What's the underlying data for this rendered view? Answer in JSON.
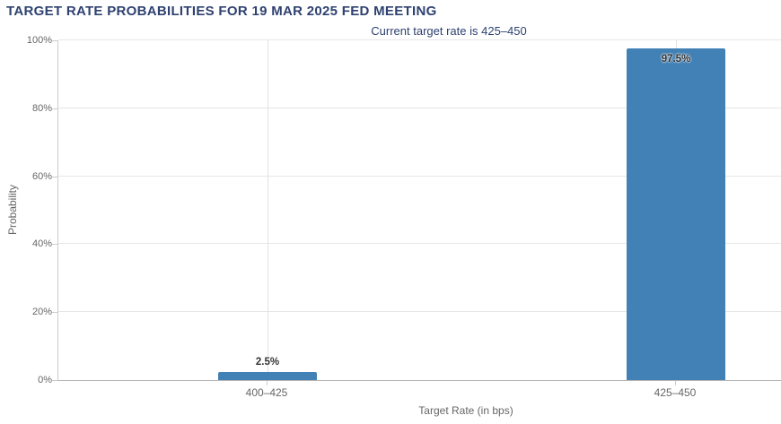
{
  "header": {
    "title": "TARGET RATE PROBABILITIES FOR 19 MAR 2025 FED MEETING",
    "subtitle": "Current target rate is 425–450"
  },
  "colors": {
    "bar_fill": "#4281b5",
    "title_text": "#2e4170",
    "axis_text": "#666666",
    "grid_line": "#e6e6e6",
    "axis_line": "#b5b5b5",
    "value_label_text": "#333333"
  },
  "chart_data": {
    "type": "bar",
    "title": "TARGET RATE PROBABILITIES FOR 19 MAR 2025 FED MEETING",
    "subtitle": "Current target rate is 425–450",
    "categories": [
      "400–425",
      "425–450"
    ],
    "values": [
      2.5,
      97.5
    ],
    "value_labels": [
      "2.5%",
      "97.5%"
    ],
    "xlabel": "Target Rate (in bps)",
    "ylabel": "Probability",
    "ylim": [
      0,
      100
    ],
    "ytick_step": 20,
    "ytick_labels": [
      "0%",
      "20%",
      "40%",
      "60%",
      "80%",
      "100%"
    ],
    "grid": true,
    "legend": false
  }
}
